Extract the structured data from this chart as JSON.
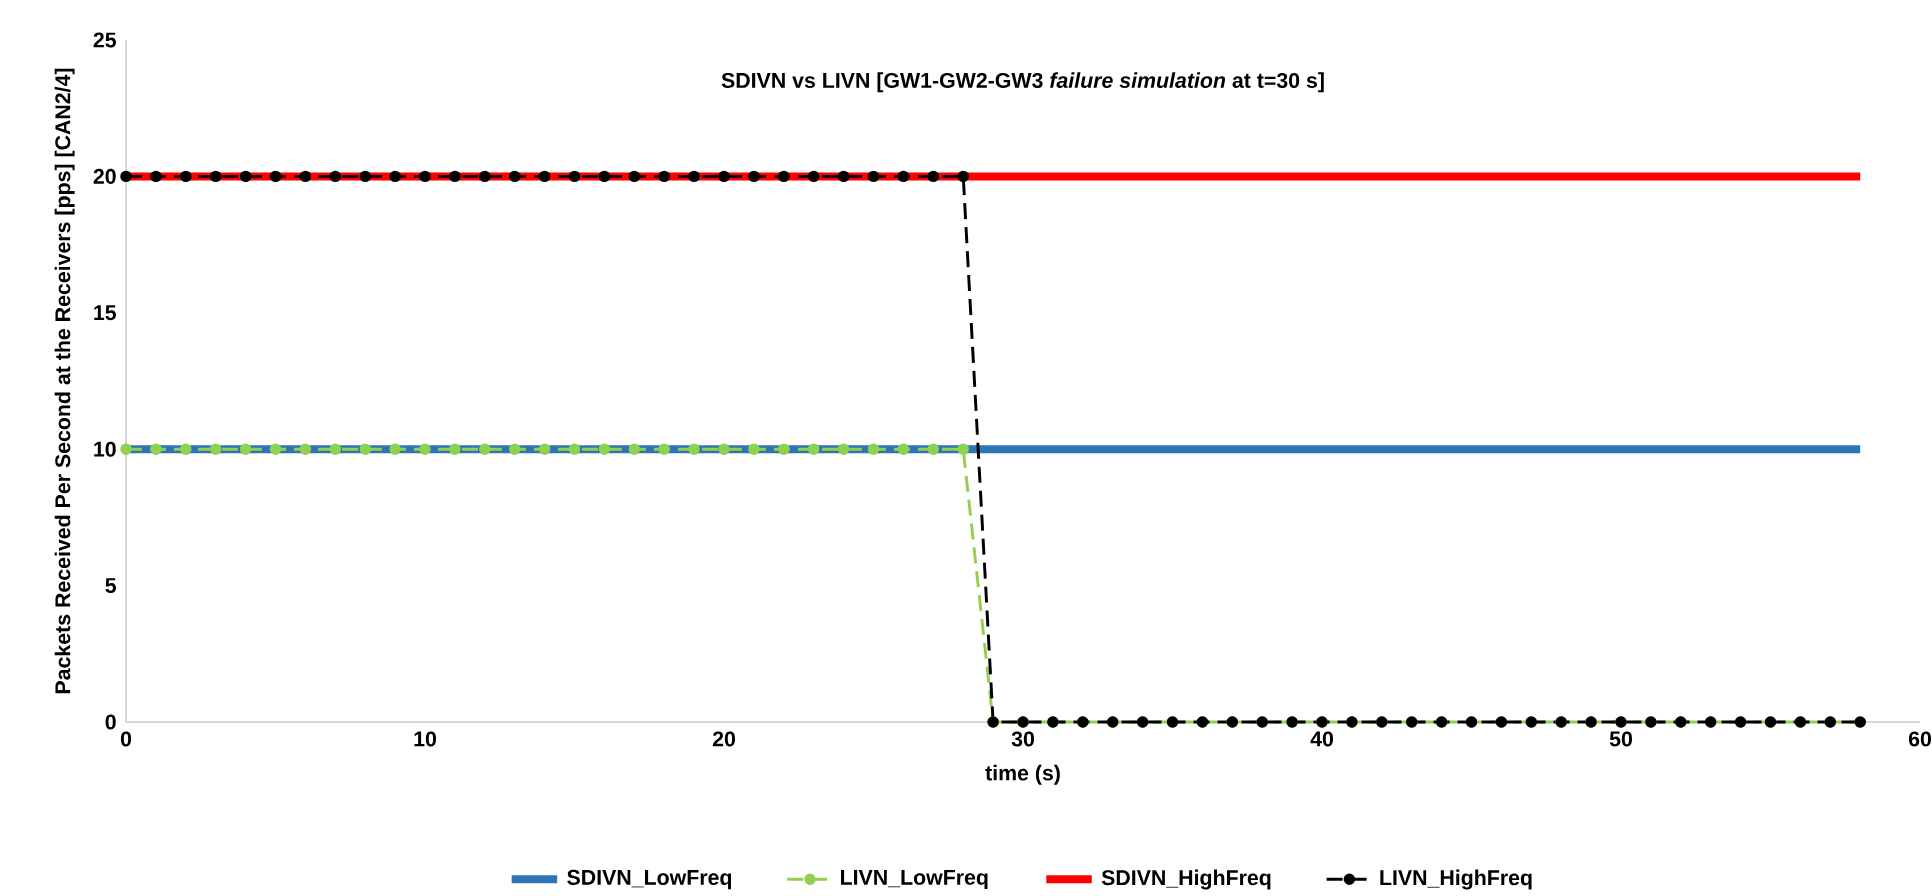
{
  "chart_data": {
    "type": "line",
    "title": "SDIVN vs LIVN [GW1-GW2-GW3 *failure simulation* at t=30 s]",
    "xlabel": "time (s)",
    "ylabel": "Packets Received Per Second at the Receivers [pps] [CAN2/4]",
    "x": [
      0,
      1,
      2,
      3,
      4,
      5,
      6,
      7,
      8,
      9,
      10,
      11,
      12,
      13,
      14,
      15,
      16,
      17,
      18,
      19,
      20,
      21,
      22,
      23,
      24,
      25,
      26,
      27,
      28,
      29,
      30,
      31,
      32,
      33,
      34,
      35,
      36,
      37,
      38,
      39,
      40,
      41,
      42,
      43,
      44,
      45,
      46,
      47,
      48,
      49,
      50,
      51,
      52,
      53,
      54,
      55,
      56,
      57,
      58
    ],
    "series": [
      {
        "name": "SDIVN_LowFreq",
        "color": "#2e75b6",
        "marker": "none",
        "line_style": "solid",
        "values": [
          10,
          10,
          10,
          10,
          10,
          10,
          10,
          10,
          10,
          10,
          10,
          10,
          10,
          10,
          10,
          10,
          10,
          10,
          10,
          10,
          10,
          10,
          10,
          10,
          10,
          10,
          10,
          10,
          10,
          10,
          10,
          10,
          10,
          10,
          10,
          10,
          10,
          10,
          10,
          10,
          10,
          10,
          10,
          10,
          10,
          10,
          10,
          10,
          10,
          10,
          10,
          10,
          10,
          10,
          10,
          10,
          10,
          10,
          10
        ]
      },
      {
        "name": "LIVN_LowFreq",
        "color": "#92d050",
        "marker": "circle",
        "line_style": "dashed",
        "values": [
          10,
          10,
          10,
          10,
          10,
          10,
          10,
          10,
          10,
          10,
          10,
          10,
          10,
          10,
          10,
          10,
          10,
          10,
          10,
          10,
          10,
          10,
          10,
          10,
          10,
          10,
          10,
          10,
          10,
          0,
          0,
          0,
          0,
          0,
          0,
          0,
          0,
          0,
          0,
          0,
          0,
          0,
          0,
          0,
          0,
          0,
          0,
          0,
          0,
          0,
          0,
          0,
          0,
          0,
          0,
          0,
          0,
          0,
          0
        ]
      },
      {
        "name": "SDIVN_HighFreq",
        "color": "#ff0000",
        "marker": "none",
        "line_style": "solid",
        "values": [
          20,
          20,
          20,
          20,
          20,
          20,
          20,
          20,
          20,
          20,
          20,
          20,
          20,
          20,
          20,
          20,
          20,
          20,
          20,
          20,
          20,
          20,
          20,
          20,
          20,
          20,
          20,
          20,
          20,
          20,
          20,
          20,
          20,
          20,
          20,
          20,
          20,
          20,
          20,
          20,
          20,
          20,
          20,
          20,
          20,
          20,
          20,
          20,
          20,
          20,
          20,
          20,
          20,
          20,
          20,
          20,
          20,
          20,
          20
        ]
      },
      {
        "name": "LIVN_HighFreq",
        "color": "#000000",
        "marker": "circle",
        "line_style": "dashed",
        "values": [
          20,
          20,
          20,
          20,
          20,
          20,
          20,
          20,
          20,
          20,
          20,
          20,
          20,
          20,
          20,
          20,
          20,
          20,
          20,
          20,
          20,
          20,
          20,
          20,
          20,
          20,
          20,
          20,
          20,
          0,
          0,
          0,
          0,
          0,
          0,
          0,
          0,
          0,
          0,
          0,
          0,
          0,
          0,
          0,
          0,
          0,
          0,
          0,
          0,
          0,
          0,
          0,
          0,
          0,
          0,
          0,
          0,
          0,
          0
        ]
      }
    ],
    "xlim": [
      0,
      60
    ],
    "xticks": [
      0,
      10,
      20,
      30,
      40,
      50,
      60
    ],
    "ylim": [
      0,
      25
    ],
    "yticks": [
      0,
      5,
      10,
      15,
      20,
      25
    ],
    "legend": "bottom"
  }
}
